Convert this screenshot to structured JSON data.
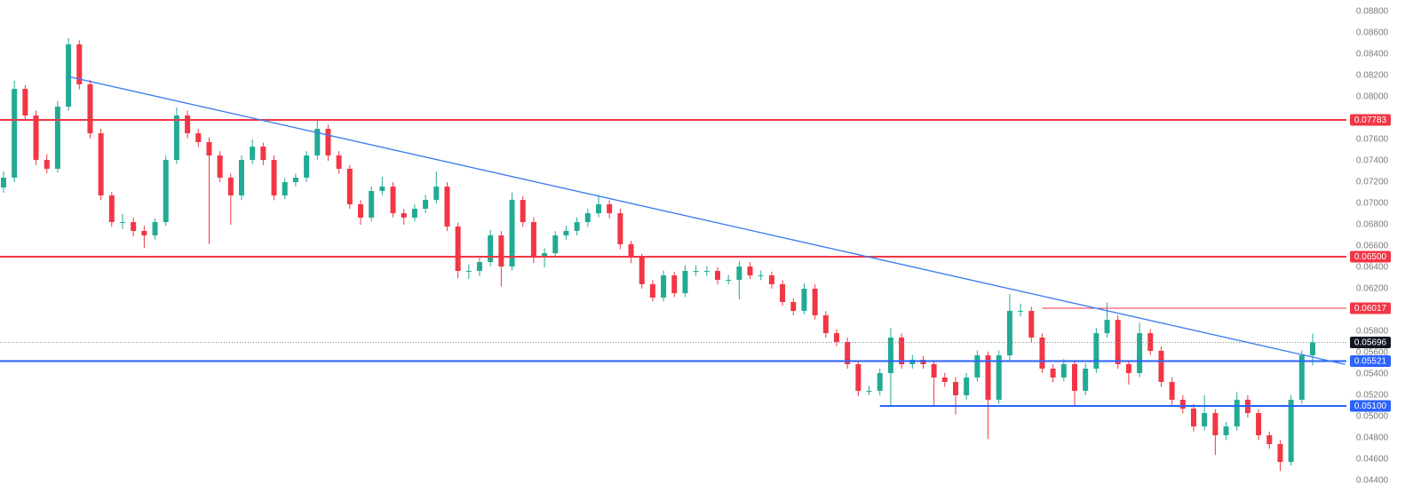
{
  "chart_data": {
    "type": "candlestick",
    "up_color": "#22ab94",
    "down_color": "#f23645",
    "ylim": [
      0.044,
      0.088
    ],
    "yticks": [
      {
        "value": 0.088,
        "label": "0.08800"
      },
      {
        "value": 0.086,
        "label": "0.08600"
      },
      {
        "value": 0.084,
        "label": "0.08400"
      },
      {
        "value": 0.082,
        "label": "0.08200"
      },
      {
        "value": 0.08,
        "label": "0.08000"
      },
      {
        "value": 0.078,
        "label": "0.07800"
      },
      {
        "value": 0.076,
        "label": "0.07600"
      },
      {
        "value": 0.074,
        "label": "0.07400"
      },
      {
        "value": 0.072,
        "label": "0.07200"
      },
      {
        "value": 0.07,
        "label": "0.07000"
      },
      {
        "value": 0.068,
        "label": "0.06800"
      },
      {
        "value": 0.066,
        "label": "0.06600"
      },
      {
        "value": 0.064,
        "label": "0.06400"
      },
      {
        "value": 0.062,
        "label": "0.06200"
      },
      {
        "value": 0.06,
        "label": "0.06000"
      },
      {
        "value": 0.058,
        "label": "0.05800"
      },
      {
        "value": 0.056,
        "label": "0.05600"
      },
      {
        "value": 0.054,
        "label": "0.05400"
      },
      {
        "value": 0.052,
        "label": "0.05200"
      },
      {
        "value": 0.05,
        "label": "0.05000"
      },
      {
        "value": 0.048,
        "label": "0.04800"
      },
      {
        "value": 0.046,
        "label": "0.04600"
      },
      {
        "value": 0.044,
        "label": "0.04400"
      }
    ],
    "ohlc": [
      [
        0.0715,
        0.073,
        0.071,
        0.07242
      ],
      [
        0.07242,
        0.0815,
        0.072,
        0.08075
      ],
      [
        0.08075,
        0.0811,
        0.0778,
        0.07825
      ],
      [
        0.07825,
        0.0787,
        0.0736,
        0.07408
      ],
      [
        0.07408,
        0.0746,
        0.0728,
        0.07325
      ],
      [
        0.07325,
        0.0796,
        0.0729,
        0.07908
      ],
      [
        0.07908,
        0.0855,
        0.0787,
        0.08492
      ],
      [
        0.08492,
        0.0853,
        0.0807,
        0.08117
      ],
      [
        0.08117,
        0.0816,
        0.0761,
        0.07658
      ],
      [
        0.07658,
        0.077,
        0.0703,
        0.07075
      ],
      [
        0.07075,
        0.0711,
        0.0678,
        0.06825
      ],
      [
        0.06825,
        0.069,
        0.0676,
        0.06825
      ],
      [
        0.06825,
        0.0687,
        0.0669,
        0.06742
      ],
      [
        0.06742,
        0.0679,
        0.0658,
        0.067
      ],
      [
        0.067,
        0.0686,
        0.0666,
        0.06825
      ],
      [
        0.06825,
        0.0745,
        0.0679,
        0.07408
      ],
      [
        0.07408,
        0.079,
        0.0737,
        0.07825
      ],
      [
        0.07825,
        0.0787,
        0.0761,
        0.07658
      ],
      [
        0.07658,
        0.077,
        0.0753,
        0.07575
      ],
      [
        0.07575,
        0.0762,
        0.0662,
        0.0745
      ],
      [
        0.0745,
        0.0749,
        0.072,
        0.07242
      ],
      [
        0.07242,
        0.0728,
        0.068,
        0.07075
      ],
      [
        0.07075,
        0.0745,
        0.0703,
        0.07408
      ],
      [
        0.07408,
        0.076,
        0.0737,
        0.07533
      ],
      [
        0.07533,
        0.0757,
        0.0736,
        0.07408
      ],
      [
        0.07408,
        0.0745,
        0.0703,
        0.07075
      ],
      [
        0.07075,
        0.0724,
        0.0704,
        0.072
      ],
      [
        0.072,
        0.0728,
        0.0716,
        0.07242
      ],
      [
        0.07242,
        0.0749,
        0.072,
        0.0745
      ],
      [
        0.0745,
        0.0778,
        0.0741,
        0.077
      ],
      [
        0.077,
        0.0774,
        0.074,
        0.0745
      ],
      [
        0.0745,
        0.0749,
        0.0728,
        0.07325
      ],
      [
        0.07325,
        0.0736,
        0.0695,
        0.06992
      ],
      [
        0.06992,
        0.0703,
        0.068,
        0.06867
      ],
      [
        0.06867,
        0.0716,
        0.0683,
        0.07117
      ],
      [
        0.07117,
        0.0725,
        0.0708,
        0.07158
      ],
      [
        0.07158,
        0.072,
        0.0687,
        0.06908
      ],
      [
        0.06908,
        0.0695,
        0.068,
        0.06867
      ],
      [
        0.06867,
        0.0699,
        0.0683,
        0.0695
      ],
      [
        0.0695,
        0.0708,
        0.0691,
        0.07033
      ],
      [
        0.07033,
        0.073,
        0.07,
        0.07158
      ],
      [
        0.07158,
        0.072,
        0.0674,
        0.06783
      ],
      [
        0.06783,
        0.0682,
        0.063,
        0.06367
      ],
      [
        0.06367,
        0.0643,
        0.0629,
        0.06367
      ],
      [
        0.06367,
        0.065,
        0.0632,
        0.0645
      ],
      [
        0.0645,
        0.0675,
        0.0641,
        0.067
      ],
      [
        0.067,
        0.0674,
        0.0622,
        0.06408
      ],
      [
        0.06408,
        0.071,
        0.0637,
        0.07033
      ],
      [
        0.07033,
        0.0707,
        0.0678,
        0.06825
      ],
      [
        0.06825,
        0.0687,
        0.0644,
        0.06492
      ],
      [
        0.06492,
        0.0658,
        0.064,
        0.06533
      ],
      [
        0.06533,
        0.0674,
        0.0649,
        0.067
      ],
      [
        0.067,
        0.0679,
        0.0666,
        0.06742
      ],
      [
        0.06742,
        0.0687,
        0.067,
        0.06825
      ],
      [
        0.06825,
        0.0695,
        0.0678,
        0.06908
      ],
      [
        0.06908,
        0.0708,
        0.0687,
        0.06992
      ],
      [
        0.06992,
        0.0703,
        0.0686,
        0.06908
      ],
      [
        0.06908,
        0.0695,
        0.0657,
        0.06617
      ],
      [
        0.06617,
        0.0665,
        0.0644,
        0.06492
      ],
      [
        0.06492,
        0.0653,
        0.062,
        0.06242
      ],
      [
        0.06242,
        0.0628,
        0.0608,
        0.06117
      ],
      [
        0.06117,
        0.0637,
        0.0608,
        0.06325
      ],
      [
        0.06325,
        0.0636,
        0.0612,
        0.06158
      ],
      [
        0.06158,
        0.0642,
        0.0612,
        0.06367
      ],
      [
        0.06367,
        0.0642,
        0.0632,
        0.06367
      ],
      [
        0.06367,
        0.0641,
        0.0632,
        0.06367
      ],
      [
        0.06367,
        0.064,
        0.0624,
        0.06283
      ],
      [
        0.06283,
        0.0633,
        0.0624,
        0.06283
      ],
      [
        0.06283,
        0.0646,
        0.061,
        0.06408
      ],
      [
        0.06408,
        0.0645,
        0.0629,
        0.06325
      ],
      [
        0.06325,
        0.0637,
        0.0628,
        0.06325
      ],
      [
        0.06325,
        0.0636,
        0.062,
        0.06242
      ],
      [
        0.06242,
        0.0628,
        0.0604,
        0.06075
      ],
      [
        0.06075,
        0.0611,
        0.0595,
        0.05992
      ],
      [
        0.05992,
        0.0625,
        0.0596,
        0.062
      ],
      [
        0.062,
        0.0624,
        0.0591,
        0.0595
      ],
      [
        0.0595,
        0.0599,
        0.0574,
        0.05783
      ],
      [
        0.05783,
        0.0582,
        0.0566,
        0.057
      ],
      [
        0.057,
        0.0574,
        0.0545,
        0.05492
      ],
      [
        0.05492,
        0.0553,
        0.0519,
        0.05242
      ],
      [
        0.05242,
        0.0529,
        0.052,
        0.05242
      ],
      [
        0.05242,
        0.0545,
        0.052,
        0.05408
      ],
      [
        0.05408,
        0.0583,
        0.0511,
        0.05742
      ],
      [
        0.05742,
        0.0578,
        0.0545,
        0.05492
      ],
      [
        0.05492,
        0.0558,
        0.0545,
        0.05533
      ],
      [
        0.05533,
        0.0557,
        0.0545,
        0.05492
      ],
      [
        0.05492,
        0.0553,
        0.0511,
        0.05367
      ],
      [
        0.05367,
        0.0541,
        0.0528,
        0.05325
      ],
      [
        0.05325,
        0.0537,
        0.0502,
        0.052
      ],
      [
        0.052,
        0.0541,
        0.0516,
        0.05367
      ],
      [
        0.05367,
        0.0562,
        0.0533,
        0.05575
      ],
      [
        0.05575,
        0.0561,
        0.0479,
        0.05158
      ],
      [
        0.05158,
        0.0562,
        0.0512,
        0.05575
      ],
      [
        0.05575,
        0.0615,
        0.0553,
        0.05992
      ],
      [
        0.05992,
        0.0606,
        0.0594,
        0.05992
      ],
      [
        0.05992,
        0.0603,
        0.057,
        0.05742
      ],
      [
        0.05742,
        0.0578,
        0.0541,
        0.0545
      ],
      [
        0.0545,
        0.0549,
        0.0532,
        0.05367
      ],
      [
        0.05367,
        0.0554,
        0.0533,
        0.05492
      ],
      [
        0.05492,
        0.0553,
        0.0511,
        0.05242
      ],
      [
        0.05242,
        0.055,
        0.052,
        0.0545
      ],
      [
        0.0545,
        0.0583,
        0.0541,
        0.05783
      ],
      [
        0.05783,
        0.0607,
        0.0574,
        0.05908
      ],
      [
        0.05908,
        0.0595,
        0.0545,
        0.05492
      ],
      [
        0.05492,
        0.0553,
        0.053,
        0.05408
      ],
      [
        0.05408,
        0.0588,
        0.0537,
        0.05783
      ],
      [
        0.05783,
        0.0582,
        0.0558,
        0.05617
      ],
      [
        0.05617,
        0.0566,
        0.0528,
        0.05325
      ],
      [
        0.05325,
        0.0537,
        0.0511,
        0.05158
      ],
      [
        0.05158,
        0.052,
        0.0503,
        0.05075
      ],
      [
        0.05075,
        0.0512,
        0.0486,
        0.04908
      ],
      [
        0.04908,
        0.052,
        0.0487,
        0.05033
      ],
      [
        0.05033,
        0.0507,
        0.0464,
        0.04825
      ],
      [
        0.04825,
        0.0495,
        0.0478,
        0.04908
      ],
      [
        0.04908,
        0.0523,
        0.0487,
        0.05158
      ],
      [
        0.05158,
        0.052,
        0.0499,
        0.05033
      ],
      [
        0.05033,
        0.0507,
        0.0478,
        0.04825
      ],
      [
        0.04825,
        0.0486,
        0.047,
        0.04742
      ],
      [
        0.04742,
        0.0478,
        0.0449,
        0.04575
      ],
      [
        0.04575,
        0.052,
        0.0454,
        0.05158
      ],
      [
        0.05158,
        0.0562,
        0.0512,
        0.05575
      ],
      [
        0.05575,
        0.0578,
        0.0548,
        0.05696
      ]
    ],
    "levels": [
      {
        "value": 0.07783,
        "label": "0.07783",
        "color": "#f23645",
        "start": 0,
        "style": "solid"
      },
      {
        "value": 0.065,
        "label": "0.06500",
        "color": "#f23645",
        "start": 0,
        "style": "solid"
      },
      {
        "value": 0.06017,
        "label": "0.06017",
        "color": "#f23645",
        "start": 96,
        "style": "thin"
      },
      {
        "value": 0.05696,
        "label": "0.05696",
        "color": "#131722",
        "start": 0,
        "style": "dotted"
      },
      {
        "value": 0.05521,
        "label": "0.05521",
        "color": "#2962ff",
        "start": 0,
        "style": "solid"
      },
      {
        "value": 0.051,
        "label": "0.05100",
        "color": "#2962ff",
        "start": 81,
        "style": "solid"
      }
    ],
    "trendline": {
      "start": 6,
      "start_value": 0.0819,
      "end": 124,
      "end_value": 0.0549,
      "color": "#3a7bf0"
    }
  }
}
